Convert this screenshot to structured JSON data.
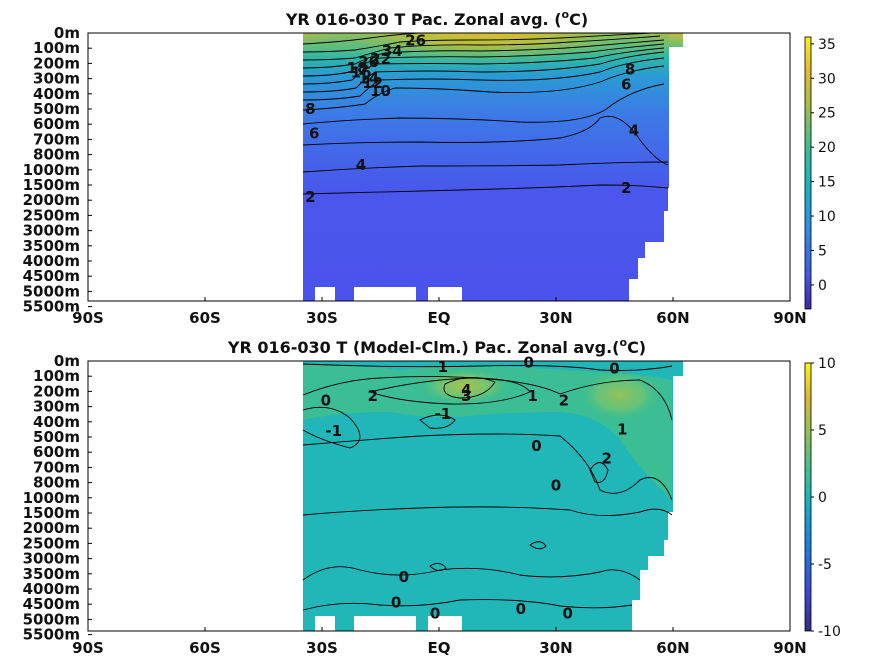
{
  "chart_data": [
    {
      "type": "heatmap",
      "title": "YR 016-030 T Pac. Zonal avg. (",
      "title_unit_sup": "o",
      "title_unit": "C)",
      "x_ticks": [
        "90S",
        "60S",
        "30S",
        "EQ",
        "30N",
        "60N",
        "90N"
      ],
      "x_values": [
        -90,
        -60,
        -30,
        0,
        30,
        60,
        90
      ],
      "y_ticks": [
        "0m",
        "100m",
        "200m",
        "300m",
        "400m",
        "500m",
        "600m",
        "700m",
        "800m",
        "1000m",
        "1500m",
        "2000m",
        "2500m",
        "3000m",
        "3500m",
        "4000m",
        "4500m",
        "5000m",
        "5500m"
      ],
      "xlim": [
        -90,
        90
      ],
      "colorbar": {
        "ticks": [
          "35",
          "30",
          "25",
          "20",
          "15",
          "10",
          "5",
          "0"
        ],
        "values": [
          35,
          30,
          25,
          20,
          15,
          10,
          5,
          0
        ],
        "range": [
          -3.5,
          36
        ]
      },
      "contour_labels": [
        {
          "text": "26",
          "lat": -6,
          "depth_index": 0.5
        },
        {
          "text": "34",
          "lat": -12,
          "depth_index": 1.2
        },
        {
          "text": "22",
          "lat": -15,
          "depth_index": 1.7
        },
        {
          "text": "20",
          "lat": -18,
          "depth_index": 1.9
        },
        {
          "text": "18",
          "lat": -21,
          "depth_index": 2.3
        },
        {
          "text": "16",
          "lat": -20,
          "depth_index": 2.6
        },
        {
          "text": "14",
          "lat": -18,
          "depth_index": 3.0
        },
        {
          "text": "12",
          "lat": -17,
          "depth_index": 3.3
        },
        {
          "text": "10",
          "lat": -15,
          "depth_index": 3.8
        },
        {
          "text": "8",
          "lat": -33,
          "depth_index": 5.0
        },
        {
          "text": "6",
          "lat": -32,
          "depth_index": 6.6
        },
        {
          "text": "4",
          "lat": -20,
          "depth_index": 8.7
        },
        {
          "text": "2",
          "lat": -33,
          "depth_index": 10.8
        },
        {
          "text": "8",
          "lat": 49,
          "depth_index": 2.4
        },
        {
          "text": "6",
          "lat": 48,
          "depth_index": 3.4
        },
        {
          "text": "4",
          "lat": 50,
          "depth_index": 6.4
        },
        {
          "text": "2",
          "lat": 48,
          "depth_index": 10.2
        }
      ]
    },
    {
      "type": "heatmap",
      "title": "YR 016-030 T (Model-Clm.) Pac. Zonal avg.(",
      "title_unit_sup": "o",
      "title_unit": "C)",
      "x_ticks": [
        "90S",
        "60S",
        "30S",
        "EQ",
        "30N",
        "60N",
        "90N"
      ],
      "x_values": [
        -90,
        -60,
        -30,
        0,
        30,
        60,
        90
      ],
      "y_ticks": [
        "0m",
        "100m",
        "200m",
        "300m",
        "400m",
        "500m",
        "600m",
        "700m",
        "800m",
        "1000m",
        "1500m",
        "2000m",
        "2500m",
        "3000m",
        "3500m",
        "4000m",
        "4500m",
        "5000m",
        "5500m"
      ],
      "xlim": [
        -90,
        90
      ],
      "colorbar": {
        "ticks": [
          "10",
          "5",
          "0",
          "-5",
          "-10"
        ],
        "values": [
          10,
          5,
          0,
          -5,
          -10
        ],
        "range": [
          -10,
          10
        ]
      },
      "contour_labels": [
        {
          "text": "0",
          "lat": 23,
          "depth_index": 0.1
        },
        {
          "text": "0",
          "lat": 45,
          "depth_index": 0.5
        },
        {
          "text": "1",
          "lat": 1,
          "depth_index": 0.4
        },
        {
          "text": "4",
          "lat": 7,
          "depth_index": 1.9
        },
        {
          "text": "3",
          "lat": 7,
          "depth_index": 2.3
        },
        {
          "text": "2",
          "lat": -17,
          "depth_index": 2.3
        },
        {
          "text": "1",
          "lat": 24,
          "depth_index": 2.3
        },
        {
          "text": "2",
          "lat": 32,
          "depth_index": 2.6
        },
        {
          "text": "0",
          "lat": -29,
          "depth_index": 2.6
        },
        {
          "text": "-1",
          "lat": -27,
          "depth_index": 4.6
        },
        {
          "text": "-1",
          "lat": 1,
          "depth_index": 3.5
        },
        {
          "text": "1",
          "lat": 47,
          "depth_index": 4.5
        },
        {
          "text": "0",
          "lat": 25,
          "depth_index": 5.6
        },
        {
          "text": "2",
          "lat": 43,
          "depth_index": 6.4
        },
        {
          "text": "0",
          "lat": 30,
          "depth_index": 8.2
        },
        {
          "text": "0",
          "lat": -9,
          "depth_index": 14.2
        },
        {
          "text": "0",
          "lat": -11,
          "depth_index": 15.9
        },
        {
          "text": "0",
          "lat": -1,
          "depth_index": 16.6
        },
        {
          "text": "0",
          "lat": 21,
          "depth_index": 16.3
        },
        {
          "text": "0",
          "lat": 33,
          "depth_index": 16.6
        }
      ]
    }
  ]
}
